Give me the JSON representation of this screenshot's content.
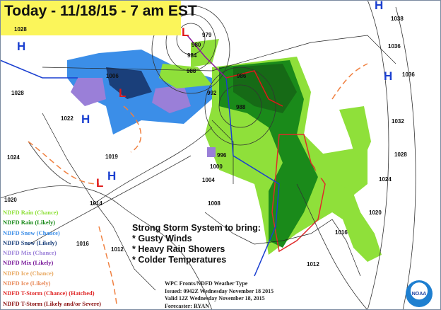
{
  "title": "Today - 11/18/15 - 7 am EST",
  "legend": [
    {
      "label": "NDFD Rain (Chance)",
      "color": "#8fe03a"
    },
    {
      "label": "NDFD Rain (Likely)",
      "color": "#1a8a1a"
    },
    {
      "label": "NDFD Snow (Chance)",
      "color": "#3b8ee8"
    },
    {
      "label": "NDFD Snow (Likely)",
      "color": "#1a3f7a"
    },
    {
      "label": "NDFD Mix (Chance)",
      "color": "#9a7fd8"
    },
    {
      "label": "NDFD Mix (Likely)",
      "color": "#7a1a9a"
    },
    {
      "label": "NDFD Ice (Chance)",
      "color": "#e8a860"
    },
    {
      "label": "NDFD Ice (Likely)",
      "color": "#e88a5a"
    },
    {
      "label": "NDFD T-Storm (Chance) (Hatched)",
      "color": "#e02a2a"
    },
    {
      "label": "NDFD T-Storm (Likely and/or Severe)",
      "color": "#8a0f0f"
    }
  ],
  "storm_message": {
    "heading": "Strong Storm System to bring:",
    "items": [
      "* Gusty Winds",
      "* Heavy Rain Showers",
      "* Colder Temperatures"
    ]
  },
  "info": {
    "line1": "WPC Fronts/NDFD Weather Type",
    "line2": "Issued: 0942Z Wednesday November 18 2015",
    "line3": "Valid 12Z Wednesday November 18, 2015",
    "line4": "Forecaster: RYAN"
  },
  "logo": "NOAA",
  "pressure_labels": [
    "1028",
    "979",
    "980",
    "984",
    "988",
    "1006",
    "992",
    "986",
    "988",
    "1022",
    "1019",
    "1024",
    "1000",
    "996",
    "1004",
    "1008",
    "1014",
    "1020",
    "1016",
    "1012",
    "1012",
    "1016",
    "1020",
    "1024",
    "1028",
    "1032",
    "1036",
    "1036",
    "1038",
    "1028"
  ],
  "highs": [
    "H",
    "H",
    "H",
    "H",
    "H"
  ],
  "lows": [
    "L",
    "L",
    "L"
  ],
  "colors": {
    "title_bg": "#fbf55a",
    "high": "#1a3fd0",
    "low": "#e01818"
  }
}
